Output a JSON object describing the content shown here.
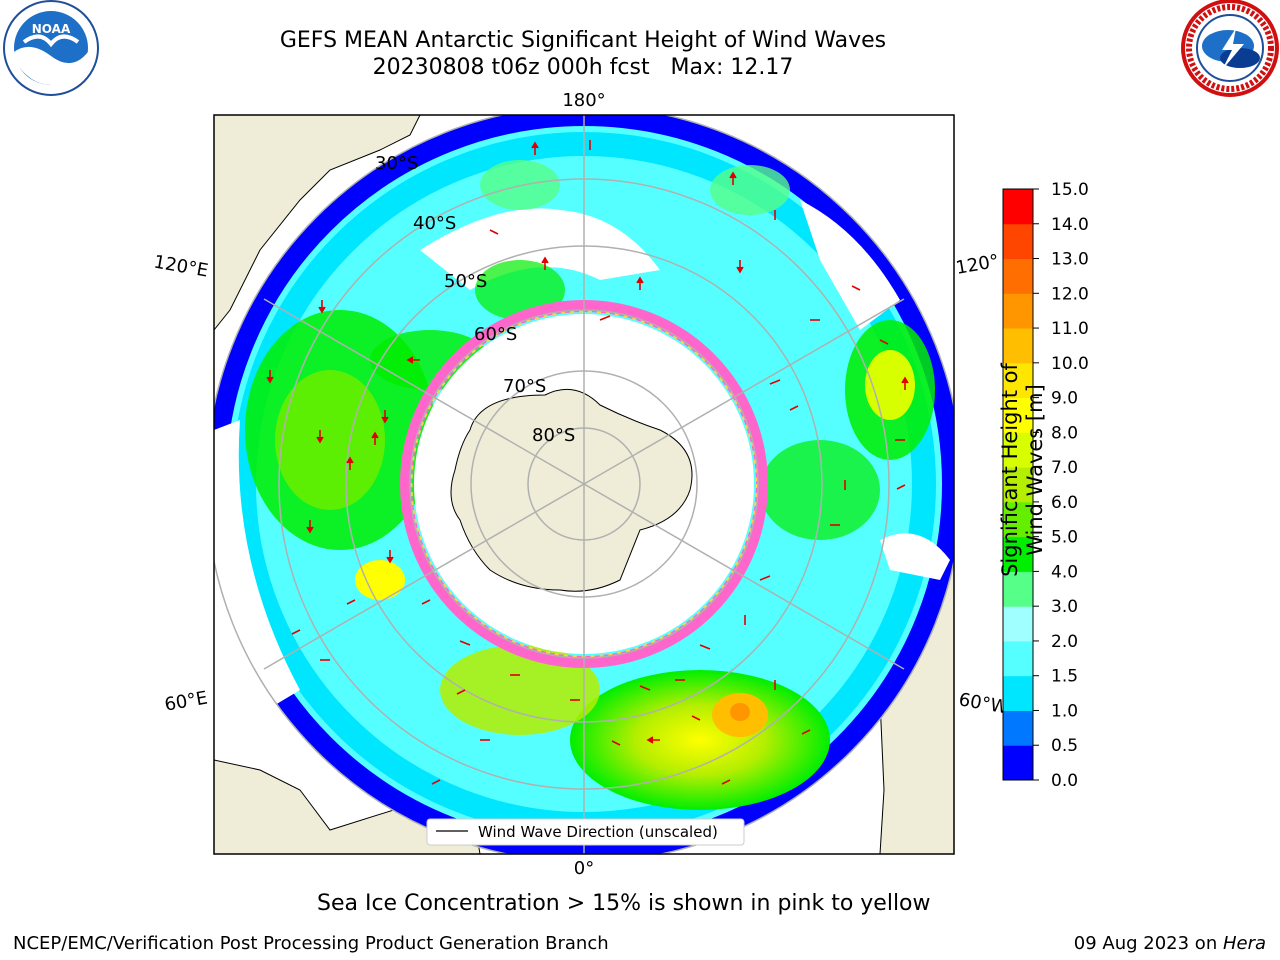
{
  "header": {
    "title_line1": "GEFS MEAN Antarctic Significant Height of Wind Waves",
    "title_line2": "20230808 t06z 000h fcst   Max: 12.17"
  },
  "logos": {
    "left": "noara-logo",
    "right": "nws-logo"
  },
  "map": {
    "projection": "south-polar-stereographic",
    "lon_labels": {
      "top": "180°",
      "bottom": "0°",
      "upper_left": "120°E",
      "upper_right": "120°",
      "lower_left": "60°E",
      "lower_right": "60°W"
    },
    "lat_labels": [
      "30°S",
      "40°S",
      "50°S",
      "60°S",
      "70°S",
      "80°S"
    ],
    "legend_label": "Wind Wave Direction (unscaled)",
    "colors": {
      "land": "#efecd8",
      "ocean_blank": "#ffffff",
      "grid": "#b0b0b0",
      "arrow": "#e00000",
      "ice_pink": "#ff66cc",
      "ice_yellow": "#ffd24d"
    }
  },
  "colorbar": {
    "label": "Significant Height of Wind Waves [m]",
    "ticks": [
      "0.0",
      "0.5",
      "1.0",
      "1.5",
      "2.0",
      "3.0",
      "4.0",
      "5.0",
      "6.0",
      "7.0",
      "8.0",
      "9.0",
      "10.0",
      "11.0",
      "12.0",
      "13.0",
      "14.0",
      "15.0"
    ],
    "colors": [
      "#0000ff",
      "#0078ff",
      "#00e6ff",
      "#55ffff",
      "#a0ffff",
      "#55ff88",
      "#00ee00",
      "#66ee00",
      "#b4ee00",
      "#d7ff00",
      "#ffff00",
      "#ffe600",
      "#ffbe00",
      "#ff9600",
      "#ff6e00",
      "#ff4600",
      "#ff0000"
    ]
  },
  "caption": "Sea Ice Concentration > 15% is shown in pink to yellow",
  "footer": {
    "left": "NCEP/EMC/Verification Post Processing Product Generation Branch",
    "right_date": "09 Aug 2023 on ",
    "right_host": "Hera"
  }
}
